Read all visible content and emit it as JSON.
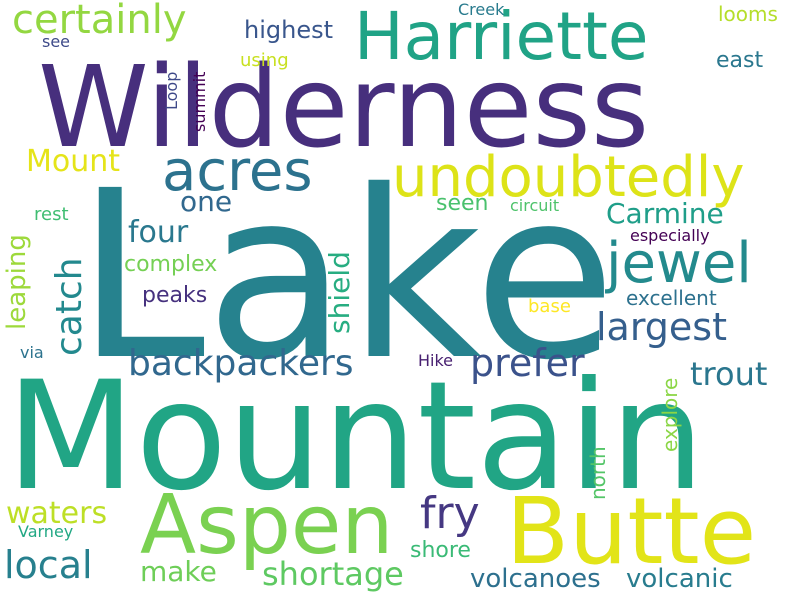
{
  "words": [
    {
      "text": "Lake",
      "color": "#26828e",
      "vertical": false
    },
    {
      "text": "Mountain",
      "color": "#21a585",
      "vertical": false
    },
    {
      "text": "Wilderness",
      "color": "#472f7d",
      "vertical": false
    },
    {
      "text": "Harriette",
      "color": "#20a386",
      "vertical": false
    },
    {
      "text": "Aspen",
      "color": "#7ad151",
      "vertical": false
    },
    {
      "text": "Butte",
      "color": "#e2e418",
      "vertical": false
    },
    {
      "text": "undoubtedly",
      "color": "#dde318",
      "vertical": false
    },
    {
      "text": "acres",
      "color": "#2c728e",
      "vertical": false
    },
    {
      "text": "jewel",
      "color": "#238a8d",
      "vertical": false
    },
    {
      "text": "certainly",
      "color": "#93d741",
      "vertical": false
    },
    {
      "text": "largest",
      "color": "#355f8d",
      "vertical": false
    },
    {
      "text": "prefer",
      "color": "#3b528b",
      "vertical": false
    },
    {
      "text": "backpackers",
      "color": "#31688e",
      "vertical": false
    },
    {
      "text": "catch",
      "color": "#23898e",
      "vertical": true
    },
    {
      "text": "four",
      "color": "#2a788e",
      "vertical": false
    },
    {
      "text": "one",
      "color": "#31688e",
      "vertical": false
    },
    {
      "text": "Mount",
      "color": "#e5e419",
      "vertical": false
    },
    {
      "text": "shield",
      "color": "#27ad81",
      "vertical": true
    },
    {
      "text": "Carmine",
      "color": "#1f9e89",
      "vertical": false
    },
    {
      "text": "trout",
      "color": "#2a768e",
      "vertical": false
    },
    {
      "text": "fry",
      "color": "#453882",
      "vertical": false
    },
    {
      "text": "local",
      "color": "#27808e",
      "vertical": false
    },
    {
      "text": "waters",
      "color": "#bddf26",
      "vertical": false
    },
    {
      "text": "make",
      "color": "#6ece58",
      "vertical": false
    },
    {
      "text": "shortage",
      "color": "#5ec962",
      "vertical": false
    },
    {
      "text": "volcanoes",
      "color": "#2d708e",
      "vertical": false
    },
    {
      "text": "volcanic",
      "color": "#287c8e",
      "vertical": false
    },
    {
      "text": "leaping",
      "color": "#9dd93b",
      "vertical": true
    },
    {
      "text": "highest",
      "color": "#39568c",
      "vertical": false
    },
    {
      "text": "complex",
      "color": "#75d054",
      "vertical": false
    },
    {
      "text": "peaks",
      "color": "#46317e",
      "vertical": false
    },
    {
      "text": "excellent",
      "color": "#2d718e",
      "vertical": false
    },
    {
      "text": "seen",
      "color": "#4ac16d",
      "vertical": false
    },
    {
      "text": "explore",
      "color": "#8bd646",
      "vertical": true
    },
    {
      "text": "north",
      "color": "#54c568",
      "vertical": true
    },
    {
      "text": "shore",
      "color": "#3aba76",
      "vertical": false
    },
    {
      "text": "east",
      "color": "#2a778e",
      "vertical": false
    },
    {
      "text": "looms",
      "color": "#b5de2b",
      "vertical": false
    },
    {
      "text": "using",
      "color": "#c8e020",
      "vertical": false
    },
    {
      "text": "summit",
      "color": "#440154",
      "vertical": true
    },
    {
      "text": "Loop",
      "color": "#3e4989",
      "vertical": true
    },
    {
      "text": "Creek",
      "color": "#297b8e",
      "vertical": false
    },
    {
      "text": "see",
      "color": "#3e4a89",
      "vertical": false
    },
    {
      "text": "rest",
      "color": "#40bd72",
      "vertical": false
    },
    {
      "text": "circuit",
      "color": "#4ec36b",
      "vertical": false
    },
    {
      "text": "especially",
      "color": "#440154",
      "vertical": false
    },
    {
      "text": "base",
      "color": "#fde725",
      "vertical": false
    },
    {
      "text": "Hike",
      "color": "#482071",
      "vertical": false
    },
    {
      "text": "via",
      "color": "#2c738e",
      "vertical": false
    },
    {
      "text": "Varney",
      "color": "#22a884",
      "vertical": false
    }
  ]
}
